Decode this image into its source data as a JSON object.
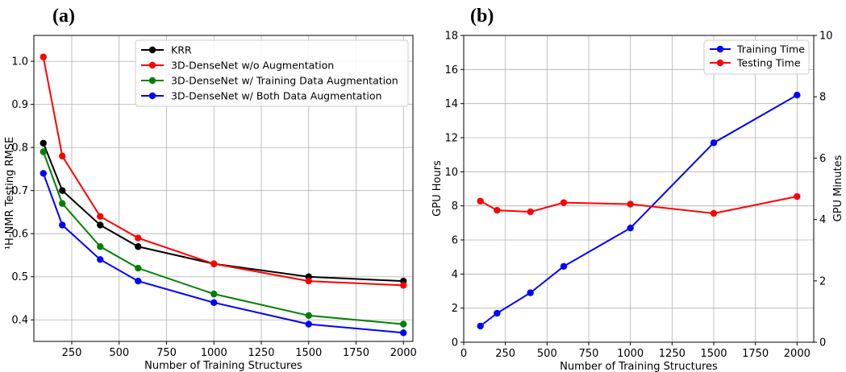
{
  "chart_data": [
    {
      "panel": "(a)",
      "type": "line",
      "xlabel": "Number of Training Structures",
      "ylabel": "¹H-NMR Testing RMSE",
      "xlim": [
        50,
        2050
      ],
      "ylim": [
        0.35,
        1.06
      ],
      "xticks": [
        250,
        500,
        750,
        1000,
        1250,
        1500,
        1750,
        2000
      ],
      "yticks": [
        0.4,
        0.5,
        0.6,
        0.7,
        0.8,
        0.9,
        1.0
      ],
      "ytick_labels": [
        "0.4",
        "0.5",
        "0.6",
        "0.7",
        "0.8",
        "0.9",
        "1.0"
      ],
      "grid": true,
      "legend": "top-right",
      "x": [
        100,
        200,
        400,
        600,
        1000,
        1500,
        2000
      ],
      "series": [
        {
          "name": "KRR",
          "color": "#000000",
          "values": [
            0.81,
            0.7,
            0.62,
            0.57,
            0.53,
            0.5,
            0.49
          ]
        },
        {
          "name": "3D-DenseNet w/o Augmentation",
          "color": "#ff0000",
          "values": [
            1.01,
            0.78,
            0.64,
            0.59,
            0.53,
            0.49,
            0.48
          ]
        },
        {
          "name": "3D-DenseNet w/ Training Data Augmentation",
          "color": "#008000",
          "values": [
            0.79,
            0.67,
            0.57,
            0.52,
            0.46,
            0.41,
            0.39
          ]
        },
        {
          "name": "3D-DenseNet w/ Both Data Augmentation",
          "color": "#0000ff",
          "values": [
            0.74,
            0.62,
            0.54,
            0.49,
            0.44,
            0.39,
            0.37
          ]
        }
      ]
    },
    {
      "panel": "(b)",
      "type": "line",
      "xlabel": "Number of Training Structures",
      "ylabel_left": "GPU Hours",
      "ylabel_right": "GPU Minutes",
      "ylabel_left_color": "#0000ff",
      "ylabel_right_color": "#ff0000",
      "xlim": [
        0,
        2100
      ],
      "ylim_left": [
        0,
        18
      ],
      "ylim_right": [
        0,
        10
      ],
      "xticks": [
        0,
        250,
        500,
        750,
        1000,
        1250,
        1500,
        1750,
        2000
      ],
      "yticks_left": [
        0,
        2,
        4,
        6,
        8,
        10,
        12,
        14,
        16,
        18
      ],
      "yticks_right": [
        0,
        2,
        4,
        6,
        8,
        10
      ],
      "grid": true,
      "legend": "top-right",
      "x": [
        100,
        200,
        400,
        600,
        1000,
        1500,
        2000
      ],
      "series": [
        {
          "name": "Training Time",
          "axis": "left",
          "color": "#0000ff",
          "values": [
            0.95,
            1.7,
            2.9,
            4.45,
            6.7,
            11.7,
            14.5
          ]
        },
        {
          "name": "Testing Time",
          "axis": "right",
          "color": "#ff0000",
          "values": [
            4.6,
            4.3,
            4.25,
            4.55,
            4.5,
            4.2,
            4.75
          ]
        }
      ]
    }
  ]
}
